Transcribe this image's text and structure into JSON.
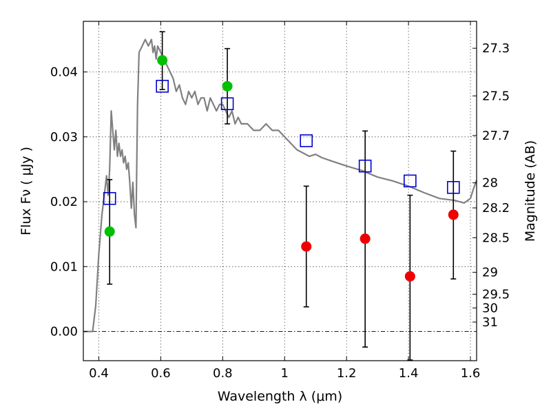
{
  "chart_data": {
    "type": "scatter",
    "xlabel": "Wavelength  λ (μm)",
    "ylabel": "Flux  Fν  ( μJy )",
    "y2label": "Magnitude (AB)",
    "xlim": [
      0.35,
      1.62
    ],
    "ylim": [
      -0.0045,
      0.0478
    ],
    "x_ticks": [
      0.4,
      0.6,
      0.8,
      1.0,
      1.2,
      1.4,
      1.6
    ],
    "x_tick_labels": [
      "0.4",
      "0.6",
      "0.8",
      "1",
      "1.2",
      "1.4",
      "1.6"
    ],
    "y_ticks": [
      0.0,
      0.01,
      0.02,
      0.03,
      0.04
    ],
    "y_tick_labels": [
      "0.00",
      "0.01",
      "0.02",
      "0.03",
      "0.04"
    ],
    "mag_ticks": [
      {
        "label": "27.3",
        "flux": 0.04365
      },
      {
        "label": "27.5",
        "flux": 0.03631
      },
      {
        "label": "27.7",
        "flux": 0.0302
      },
      {
        "label": "28",
        "flux": 0.02291
      },
      {
        "label": "28.2",
        "flux": 0.01905
      },
      {
        "label": "28.5",
        "flux": 0.01445
      },
      {
        "label": "29",
        "flux": 0.00912
      },
      {
        "label": "29.5",
        "flux": 0.00575
      },
      {
        "label": "30",
        "flux": 0.00363
      },
      {
        "label": "31",
        "flux": 0.00145
      }
    ],
    "grid": true,
    "colors": {
      "model": "#808080",
      "observed": "#00c000",
      "upper": "#ee0000",
      "model_points": "#0000cc",
      "errorbar": "#000000"
    },
    "model_spectrum": {
      "x": [
        0.35,
        0.38,
        0.39,
        0.4,
        0.41,
        0.42,
        0.425,
        0.43,
        0.435,
        0.44,
        0.445,
        0.45,
        0.455,
        0.46,
        0.465,
        0.47,
        0.475,
        0.48,
        0.485,
        0.49,
        0.495,
        0.5,
        0.505,
        0.51,
        0.515,
        0.52,
        0.525,
        0.53,
        0.54,
        0.55,
        0.56,
        0.57,
        0.575,
        0.58,
        0.585,
        0.59,
        0.6,
        0.61,
        0.62,
        0.63,
        0.64,
        0.65,
        0.66,
        0.67,
        0.68,
        0.69,
        0.7,
        0.71,
        0.72,
        0.73,
        0.74,
        0.75,
        0.76,
        0.77,
        0.78,
        0.79,
        0.8,
        0.81,
        0.82,
        0.83,
        0.84,
        0.85,
        0.86,
        0.88,
        0.9,
        0.92,
        0.94,
        0.96,
        0.98,
        1.0,
        1.02,
        1.04,
        1.06,
        1.08,
        1.1,
        1.12,
        1.15,
        1.2,
        1.25,
        1.3,
        1.35,
        1.4,
        1.45,
        1.5,
        1.55,
        1.58,
        1.6,
        1.61,
        1.62
      ],
      "y": [
        0.0,
        0.0,
        0.004,
        0.012,
        0.018,
        0.022,
        0.024,
        0.021,
        0.025,
        0.034,
        0.031,
        0.028,
        0.031,
        0.027,
        0.029,
        0.027,
        0.028,
        0.026,
        0.027,
        0.025,
        0.026,
        0.023,
        0.019,
        0.023,
        0.018,
        0.016,
        0.035,
        0.043,
        0.044,
        0.045,
        0.044,
        0.045,
        0.043,
        0.044,
        0.042,
        0.044,
        0.043,
        0.042,
        0.041,
        0.04,
        0.039,
        0.037,
        0.038,
        0.036,
        0.035,
        0.037,
        0.036,
        0.037,
        0.035,
        0.036,
        0.036,
        0.034,
        0.036,
        0.035,
        0.034,
        0.035,
        0.035,
        0.034,
        0.033,
        0.034,
        0.032,
        0.033,
        0.032,
        0.032,
        0.031,
        0.031,
        0.032,
        0.031,
        0.031,
        0.03,
        0.029,
        0.028,
        0.0275,
        0.027,
        0.0273,
        0.0268,
        0.0263,
        0.0255,
        0.0248,
        0.0238,
        0.0232,
        0.0224,
        0.0214,
        0.0205,
        0.0202,
        0.0198,
        0.0205,
        0.022,
        0.0233
      ]
    },
    "observed": [
      {
        "x": 0.435,
        "y": 0.0154,
        "err_low": 0.0081,
        "err_high": 0.008
      },
      {
        "x": 0.605,
        "y": 0.0418,
        "err_low": 0.0045,
        "err_high": 0.0044
      },
      {
        "x": 0.815,
        "y": 0.0378,
        "err_low": 0.0058,
        "err_high": 0.0058
      }
    ],
    "upper_limits": [
      {
        "x": 1.07,
        "y": 0.0131,
        "err_low": 0.0093,
        "err_high": 0.0093
      },
      {
        "x": 1.26,
        "y": 0.0143,
        "err_low": 0.0167,
        "err_high": 0.0166
      },
      {
        "x": 1.405,
        "y": 0.0085,
        "err_low": 0.0129,
        "err_high": 0.0125
      },
      {
        "x": 1.545,
        "y": 0.018,
        "err_low": 0.0099,
        "err_high": 0.0098
      }
    ],
    "model_points": [
      {
        "x": 0.435,
        "y": 0.0205
      },
      {
        "x": 0.605,
        "y": 0.0378
      },
      {
        "x": 0.815,
        "y": 0.0351
      },
      {
        "x": 1.07,
        "y": 0.0294
      },
      {
        "x": 1.26,
        "y": 0.0255
      },
      {
        "x": 1.405,
        "y": 0.0232
      },
      {
        "x": 1.545,
        "y": 0.0222
      }
    ]
  }
}
